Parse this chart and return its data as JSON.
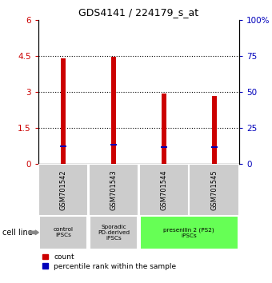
{
  "title": "GDS4141 / 224179_s_at",
  "samples": [
    "GSM701542",
    "GSM701543",
    "GSM701544",
    "GSM701545"
  ],
  "red_values": [
    4.4,
    4.45,
    2.95,
    2.82
  ],
  "blue_values": [
    0.75,
    0.8,
    0.72,
    0.7
  ],
  "ylim_left": [
    0,
    6
  ],
  "ylim_right": [
    0,
    100
  ],
  "yticks_left": [
    0,
    1.5,
    3.0,
    4.5,
    6
  ],
  "yticks_right": [
    0,
    25,
    50,
    75,
    100
  ],
  "ytick_labels_right": [
    "0",
    "25",
    "50",
    "75",
    "100%"
  ],
  "hlines": [
    1.5,
    3.0,
    4.5
  ],
  "bar_width": 0.1,
  "red_color": "#cc0000",
  "blue_color": "#0000bb",
  "group_configs": [
    {
      "label": "control\nIPSCs",
      "xmin": -0.48,
      "xmax": 0.48,
      "color": "#cccccc"
    },
    {
      "label": "Sporadic\nPD-derived\niPSCs",
      "xmin": 0.52,
      "xmax": 1.48,
      "color": "#cccccc"
    },
    {
      "label": "presenilin 2 (PS2)\niPSCs",
      "xmin": 1.52,
      "xmax": 3.48,
      "color": "#66ff55"
    }
  ],
  "cell_line_label": "cell line",
  "legend_count": "count",
  "legend_percentile": "percentile rank within the sample",
  "sample_box_color": "#cccccc",
  "background_color": "#ffffff"
}
